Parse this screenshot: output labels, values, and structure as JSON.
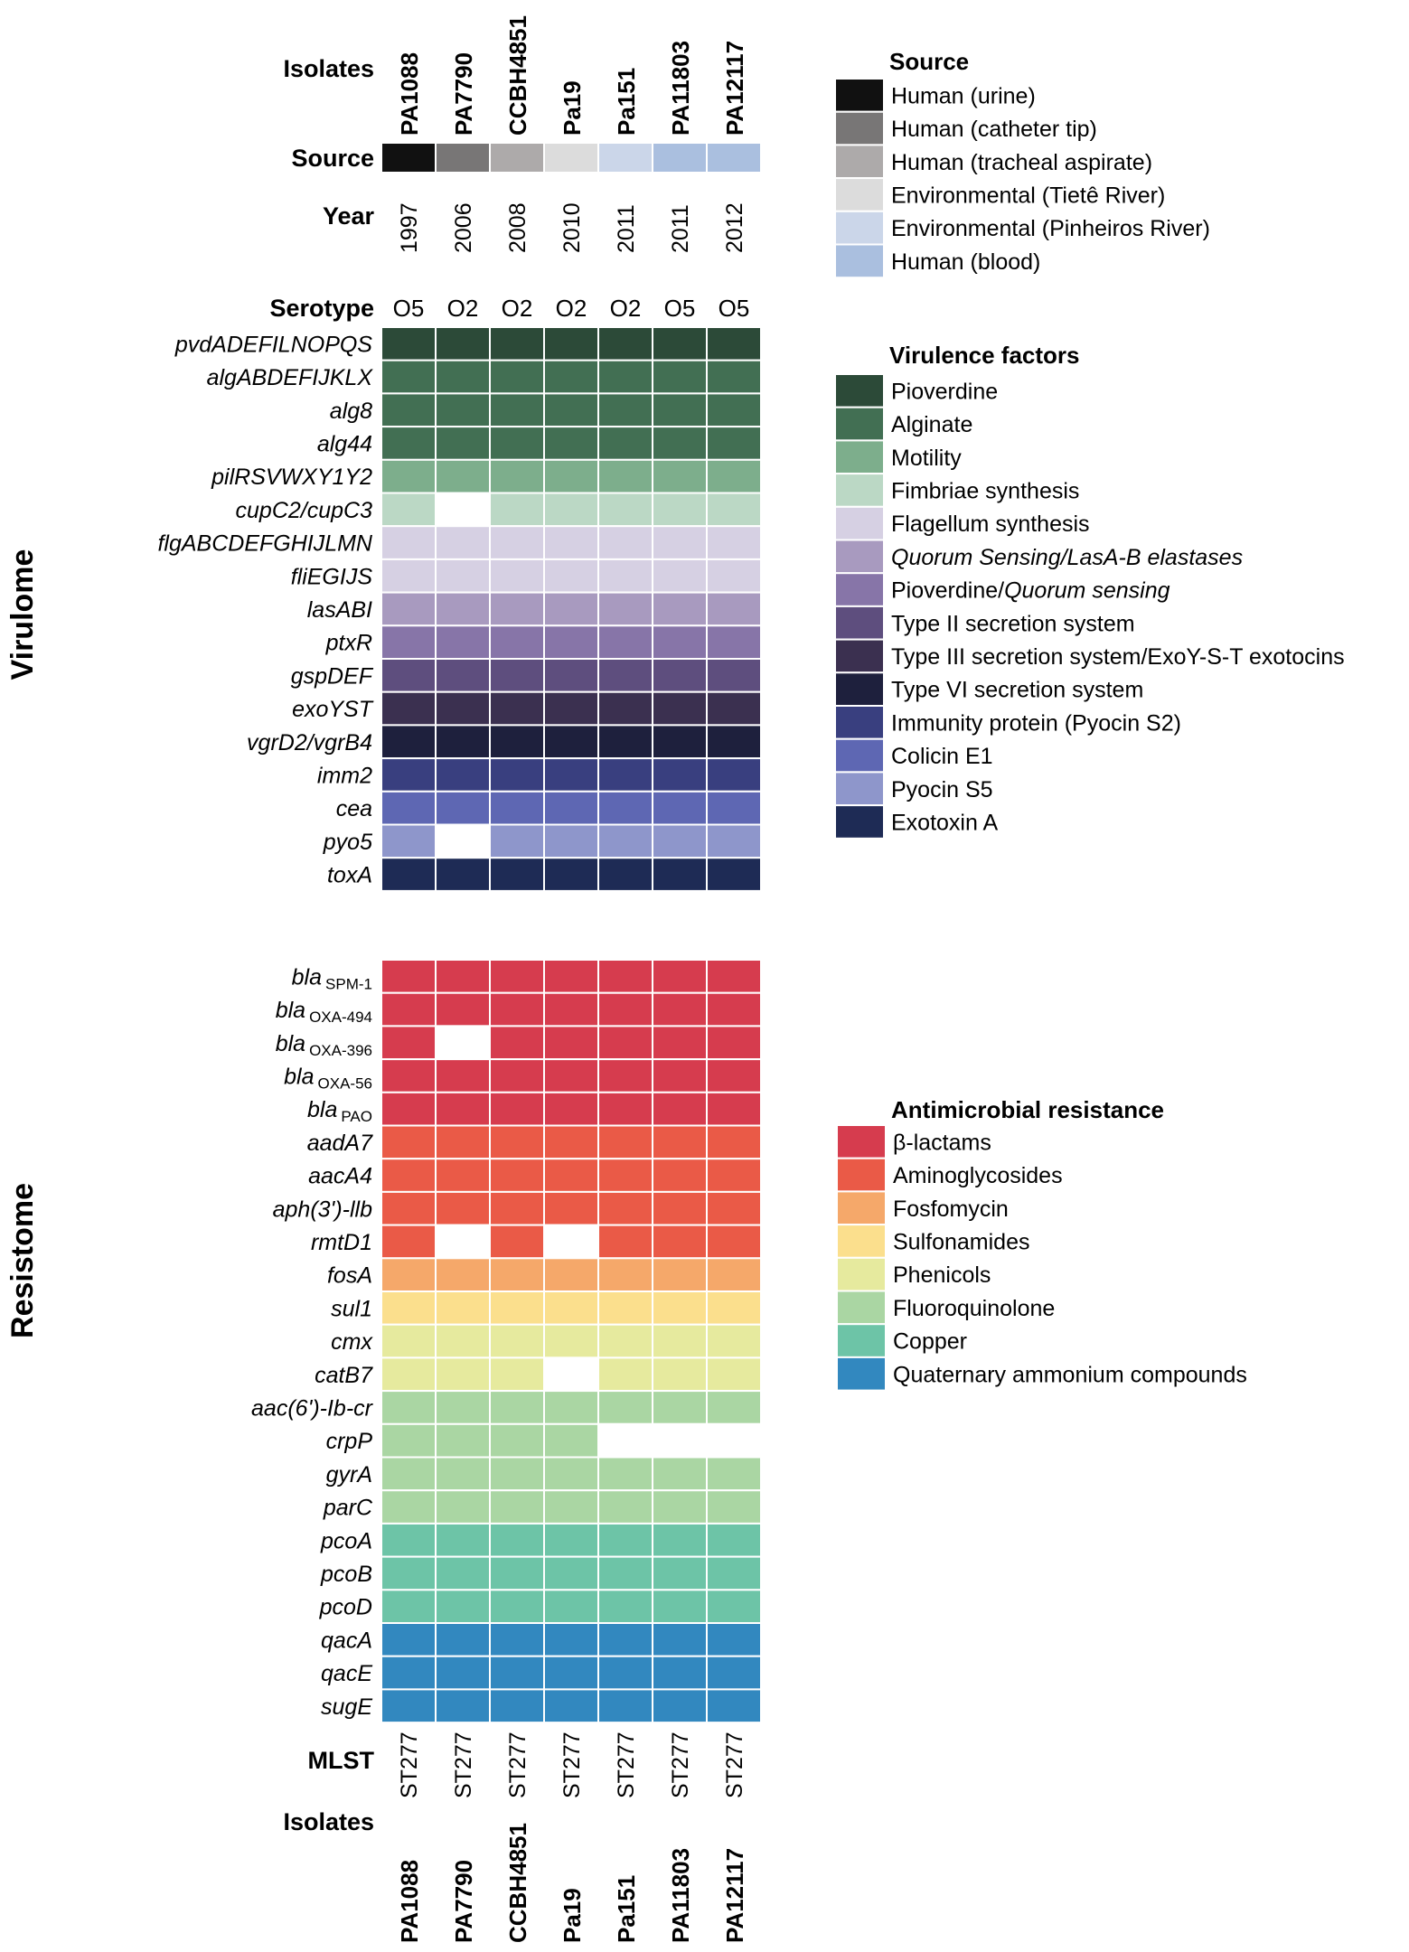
{
  "figure": {
    "isolates_label": "Isolates",
    "source_label": "Source",
    "year_label": "Year",
    "serotype_label": "Serotype",
    "mlst_label": "MLST",
    "virulome_label": "Virulome",
    "resistome_label": "Resistome",
    "isolates": [
      "PA1088",
      "PA7790",
      "CCBH4851",
      "Pa19",
      "Pa151",
      "PA11803",
      "PA12117"
    ],
    "years": [
      "1997",
      "2006",
      "2008",
      "2010",
      "2011",
      "2011",
      "2012"
    ],
    "serotypes": [
      "O5",
      "O2",
      "O2",
      "O2",
      "O2",
      "O5",
      "O5"
    ],
    "mlst": [
      "ST277",
      "ST277",
      "ST277",
      "ST277",
      "ST277",
      "ST277",
      "ST277"
    ]
  },
  "chart_data": {
    "type": "heatmap",
    "source_row": [
      0,
      1,
      2,
      3,
      4,
      5,
      5
    ],
    "virulome": {
      "genes": [
        {
          "pre": "pvdADEFILNOPQS",
          "cat": 0,
          "presence": [
            1,
            1,
            1,
            1,
            1,
            1,
            1
          ]
        },
        {
          "pre": "algABDEFIJKLX",
          "cat": 1,
          "presence": [
            1,
            1,
            1,
            1,
            1,
            1,
            1
          ]
        },
        {
          "pre": "alg8",
          "cat": 1,
          "presence": [
            1,
            1,
            1,
            1,
            1,
            1,
            1
          ]
        },
        {
          "pre": "alg44",
          "cat": 1,
          "presence": [
            1,
            1,
            1,
            1,
            1,
            1,
            1
          ]
        },
        {
          "pre": "pilRSVWXY1Y2",
          "cat": 2,
          "presence": [
            1,
            1,
            1,
            1,
            1,
            1,
            1
          ]
        },
        {
          "pre": "cupC2/cupC3",
          "cat": 3,
          "presence": [
            1,
            0,
            1,
            1,
            1,
            1,
            1
          ]
        },
        {
          "pre": "flgABCDEFGHIJLMN",
          "cat": 4,
          "presence": [
            1,
            1,
            1,
            1,
            1,
            1,
            1
          ]
        },
        {
          "pre": "fliEGIJS",
          "cat": 4,
          "presence": [
            1,
            1,
            1,
            1,
            1,
            1,
            1
          ]
        },
        {
          "pre": "lasABI",
          "cat": 5,
          "presence": [
            1,
            1,
            1,
            1,
            1,
            1,
            1
          ]
        },
        {
          "pre": "ptxR",
          "cat": 6,
          "presence": [
            1,
            1,
            1,
            1,
            1,
            1,
            1
          ]
        },
        {
          "pre": "gspDEF",
          "cat": 7,
          "presence": [
            1,
            1,
            1,
            1,
            1,
            1,
            1
          ]
        },
        {
          "pre": "exoYST",
          "cat": 8,
          "presence": [
            1,
            1,
            1,
            1,
            1,
            1,
            1
          ]
        },
        {
          "pre": "vgrD2/vgrB4",
          "cat": 9,
          "presence": [
            1,
            1,
            1,
            1,
            1,
            1,
            1
          ]
        },
        {
          "pre": "imm2",
          "cat": 10,
          "presence": [
            1,
            1,
            1,
            1,
            1,
            1,
            1
          ]
        },
        {
          "pre": "cea",
          "cat": 11,
          "presence": [
            1,
            1,
            1,
            1,
            1,
            1,
            1
          ]
        },
        {
          "pre": "pyo5",
          "cat": 12,
          "presence": [
            1,
            0,
            1,
            1,
            1,
            1,
            1
          ]
        },
        {
          "pre": "toxA",
          "cat": 13,
          "presence": [
            1,
            1,
            1,
            1,
            1,
            1,
            1
          ]
        }
      ]
    },
    "resistome": {
      "genes": [
        {
          "pre": "bla",
          "sub": "SPM-1",
          "cat": 0,
          "presence": [
            1,
            1,
            1,
            1,
            1,
            1,
            1
          ]
        },
        {
          "pre": "bla",
          "sub": "OXA-494",
          "cat": 0,
          "presence": [
            1,
            1,
            1,
            1,
            1,
            1,
            1
          ]
        },
        {
          "pre": "bla",
          "sub": "OXA-396",
          "cat": 0,
          "presence": [
            1,
            0,
            1,
            1,
            1,
            1,
            1
          ]
        },
        {
          "pre": "bla",
          "sub": "OXA-56",
          "cat": 0,
          "presence": [
            1,
            1,
            1,
            1,
            1,
            1,
            1
          ]
        },
        {
          "pre": "bla",
          "sub": "PAO",
          "cat": 0,
          "presence": [
            1,
            1,
            1,
            1,
            1,
            1,
            1
          ]
        },
        {
          "pre": "aadA7",
          "cat": 1,
          "presence": [
            1,
            1,
            1,
            1,
            1,
            1,
            1
          ]
        },
        {
          "pre": "aacA4",
          "cat": 1,
          "presence": [
            1,
            1,
            1,
            1,
            1,
            1,
            1
          ]
        },
        {
          "pre": "aph(3')-llb",
          "cat": 1,
          "presence": [
            1,
            1,
            1,
            1,
            1,
            1,
            1
          ]
        },
        {
          "pre": "rmtD1",
          "cat": 1,
          "presence": [
            1,
            0,
            1,
            0,
            1,
            1,
            1
          ]
        },
        {
          "pre": "fosA",
          "cat": 2,
          "presence": [
            1,
            1,
            1,
            1,
            1,
            1,
            1
          ]
        },
        {
          "pre": "sul1",
          "cat": 3,
          "presence": [
            1,
            1,
            1,
            1,
            1,
            1,
            1
          ]
        },
        {
          "pre": "cmx",
          "cat": 4,
          "presence": [
            1,
            1,
            1,
            1,
            1,
            1,
            1
          ]
        },
        {
          "pre": "catB7",
          "cat": 4,
          "presence": [
            1,
            1,
            1,
            0,
            1,
            1,
            1
          ]
        },
        {
          "pre": "aac(6')-Ib-cr",
          "cat": 5,
          "presence": [
            1,
            1,
            1,
            1,
            1,
            1,
            1
          ]
        },
        {
          "pre": "crpP",
          "cat": 5,
          "presence": [
            1,
            1,
            1,
            1,
            0,
            0,
            0
          ]
        },
        {
          "pre": "gyrA",
          "cat": 5,
          "presence": [
            1,
            1,
            1,
            1,
            1,
            1,
            1
          ]
        },
        {
          "pre": "parC",
          "cat": 5,
          "presence": [
            1,
            1,
            1,
            1,
            1,
            1,
            1
          ]
        },
        {
          "pre": "pcoA",
          "cat": 6,
          "presence": [
            1,
            1,
            1,
            1,
            1,
            1,
            1
          ]
        },
        {
          "pre": "pcoB",
          "cat": 6,
          "presence": [
            1,
            1,
            1,
            1,
            1,
            1,
            1
          ]
        },
        {
          "pre": "pcoD",
          "cat": 6,
          "presence": [
            1,
            1,
            1,
            1,
            1,
            1,
            1
          ]
        },
        {
          "pre": "qacA",
          "cat": 7,
          "presence": [
            1,
            1,
            1,
            1,
            1,
            1,
            1
          ]
        },
        {
          "pre": "qacE",
          "cat": 7,
          "presence": [
            1,
            1,
            1,
            1,
            1,
            1,
            1
          ]
        },
        {
          "pre": "sugE",
          "cat": 7,
          "presence": [
            1,
            1,
            1,
            1,
            1,
            1,
            1
          ]
        }
      ]
    },
    "legends": {
      "source": {
        "title": "Source",
        "items": [
          {
            "label": "Human (urine)",
            "color": "#111111"
          },
          {
            "label": "Human (catheter tip)",
            "color": "#787676"
          },
          {
            "label": "Human (tracheal aspirate)",
            "color": "#ADAAAA"
          },
          {
            "label": "Environmental (Tietê River)",
            "color": "#DCDCDC"
          },
          {
            "label": "Environmental (Pinheiros River)",
            "color": "#CBD6E9"
          },
          {
            "label": "Human (blood)",
            "color": "#AABFDF"
          }
        ]
      },
      "virulence": {
        "title": "Virulence factors",
        "items": [
          {
            "label": "Pioverdine",
            "color": "#2C4A38"
          },
          {
            "label": "Alginate",
            "color": "#426F53"
          },
          {
            "label": "Motility",
            "color": "#7DAE8C"
          },
          {
            "label": "Fimbriae synthesis",
            "color": "#BBD8C5"
          },
          {
            "label": "Flagellum synthesis",
            "color": "#D6D0E3"
          },
          {
            "label": "Quorum Sensing/LasA-B elastases",
            "color": "#A89ABF",
            "italic": true
          },
          {
            "label": "Pioverdine/",
            "italic_part": "Quorum sensing",
            "color": "#8775A8"
          },
          {
            "label": "Type II secretion system",
            "color": "#5E4E7E"
          },
          {
            "label": "Type III secretion system/ExoY-S-T exotocins",
            "color": "#3B3050"
          },
          {
            "label": "Type VI secretion system",
            "color": "#1E203D"
          },
          {
            "label": "Immunity protein (Pyocin S2)",
            "color": "#393F7F"
          },
          {
            "label": "Colicin E1",
            "color": "#5E67B3"
          },
          {
            "label": "Pyocin S5",
            "color": "#8E96CB"
          },
          {
            "label": "Exotoxin A",
            "color": "#1E2B55"
          }
        ]
      },
      "resistance": {
        "title": "Antimicrobial resistance",
        "items": [
          {
            "label": "β-lactams",
            "color": "#D63C4E"
          },
          {
            "label": "Aminoglycosides",
            "color": "#EA5A47"
          },
          {
            "label": "Fosfomycin",
            "color": "#F5A86A"
          },
          {
            "label": "Sulfonamides",
            "color": "#FBDF8D"
          },
          {
            "label": "Phenicols",
            "color": "#E6EA9E"
          },
          {
            "label": "Fluoroquinolone",
            "color": "#AAD6A3"
          },
          {
            "label": "Copper",
            "color": "#6DC4A7"
          },
          {
            "label": "Quaternary ammonium compounds",
            "color": "#3288BF"
          }
        ]
      }
    }
  }
}
